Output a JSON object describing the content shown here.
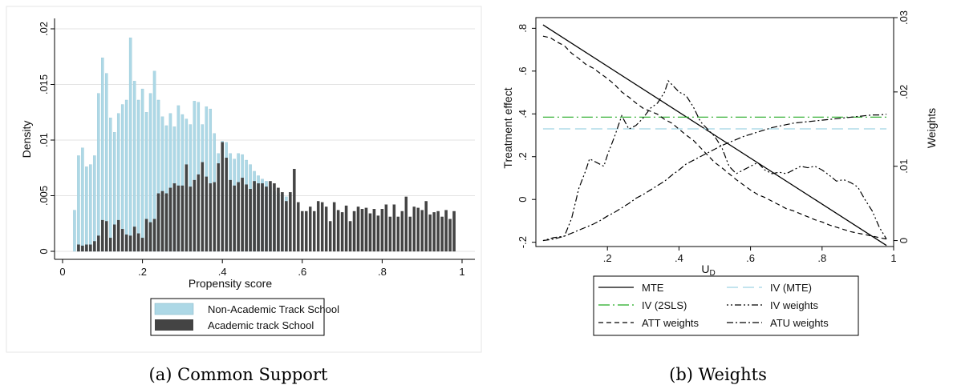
{
  "captions": {
    "left": "(a)  Common Support",
    "right": "(b)  Weights"
  },
  "colors": {
    "light_bar": "#add8e6",
    "dark_bar": "#444444",
    "green": "#22aa22",
    "light_blue_line": "#9fd3e3",
    "black": "#000000"
  },
  "chart_data": [
    {
      "type": "bar",
      "panel": "a",
      "xlabel": "Propensity score",
      "ylabel": "Density",
      "xlim": [
        0,
        1
      ],
      "ylim": [
        0,
        0.02
      ],
      "xticks": [
        0,
        0.2,
        0.4,
        0.6,
        0.8,
        1
      ],
      "xtick_labels": [
        "0",
        ".2",
        ".4",
        ".6",
        ".8",
        "1"
      ],
      "yticks": [
        0,
        0.005,
        0.01,
        0.015,
        0.02
      ],
      "ytick_labels": [
        "0",
        ".005",
        ".01",
        ".015",
        ".02"
      ],
      "grid": true,
      "legend_position": "bottom",
      "series": [
        {
          "name": "Non-Academic Track School",
          "color": "#add8e6",
          "x": [
            0.03,
            0.04,
            0.05,
            0.06,
            0.07,
            0.08,
            0.09,
            0.1,
            0.11,
            0.12,
            0.13,
            0.14,
            0.15,
            0.16,
            0.17,
            0.18,
            0.19,
            0.2,
            0.21,
            0.22,
            0.23,
            0.24,
            0.25,
            0.26,
            0.27,
            0.28,
            0.29,
            0.3,
            0.31,
            0.32,
            0.33,
            0.34,
            0.35,
            0.36,
            0.37,
            0.38,
            0.39,
            0.4,
            0.41,
            0.42,
            0.43,
            0.44,
            0.45,
            0.46,
            0.47,
            0.48,
            0.49,
            0.5,
            0.51,
            0.52,
            0.53,
            0.54,
            0.55,
            0.56
          ],
          "values": [
            0.0037,
            0.0086,
            0.0093,
            0.0076,
            0.0078,
            0.0086,
            0.0142,
            0.0174,
            0.016,
            0.012,
            0.0107,
            0.0124,
            0.0132,
            0.0136,
            0.0192,
            0.0153,
            0.0136,
            0.0146,
            0.0125,
            0.0142,
            0.0162,
            0.0136,
            0.0121,
            0.0113,
            0.0124,
            0.0112,
            0.0131,
            0.0123,
            0.0119,
            0.0114,
            0.0135,
            0.0134,
            0.0114,
            0.013,
            0.0128,
            0.0106,
            0.0088,
            0.0099,
            0.0098,
            0.0088,
            0.0083,
            0.0088,
            0.0087,
            0.0082,
            0.0078,
            0.0072,
            0.0068,
            0.0065,
            0.0063,
            0.0058,
            0.0054,
            0.0052,
            0.0051,
            0.0049
          ]
        },
        {
          "name": "Academic track School",
          "color": "#444444",
          "x": [
            0.04,
            0.05,
            0.06,
            0.07,
            0.08,
            0.09,
            0.1,
            0.11,
            0.12,
            0.13,
            0.14,
            0.15,
            0.16,
            0.17,
            0.18,
            0.19,
            0.2,
            0.21,
            0.22,
            0.23,
            0.24,
            0.25,
            0.26,
            0.27,
            0.28,
            0.29,
            0.3,
            0.31,
            0.32,
            0.33,
            0.34,
            0.35,
            0.36,
            0.37,
            0.38,
            0.39,
            0.4,
            0.41,
            0.42,
            0.43,
            0.44,
            0.45,
            0.46,
            0.47,
            0.48,
            0.49,
            0.5,
            0.51,
            0.52,
            0.53,
            0.54,
            0.55,
            0.56,
            0.57,
            0.58,
            0.59,
            0.6,
            0.61,
            0.62,
            0.63,
            0.64,
            0.65,
            0.66,
            0.67,
            0.68,
            0.69,
            0.7,
            0.71,
            0.72,
            0.73,
            0.74,
            0.75,
            0.76,
            0.77,
            0.78,
            0.79,
            0.8,
            0.81,
            0.82,
            0.83,
            0.84,
            0.85,
            0.86,
            0.87,
            0.88,
            0.89,
            0.9,
            0.91,
            0.92,
            0.93,
            0.94,
            0.95,
            0.96,
            0.97,
            0.98
          ],
          "values": [
            0.0006,
            0.0005,
            0.0006,
            0.0006,
            0.0009,
            0.0014,
            0.0028,
            0.0027,
            0.0012,
            0.0024,
            0.0028,
            0.002,
            0.0015,
            0.0014,
            0.0022,
            0.0016,
            0.0012,
            0.0029,
            0.0026,
            0.0029,
            0.0052,
            0.0054,
            0.0052,
            0.0057,
            0.0061,
            0.0059,
            0.0059,
            0.0078,
            0.0058,
            0.0064,
            0.0069,
            0.008,
            0.0067,
            0.0061,
            0.0062,
            0.0079,
            0.0098,
            0.0084,
            0.0064,
            0.0059,
            0.0062,
            0.0066,
            0.006,
            0.0056,
            0.0063,
            0.0061,
            0.0061,
            0.0058,
            0.0063,
            0.0061,
            0.0057,
            0.0053,
            0.0045,
            0.0053,
            0.0074,
            0.0044,
            0.0036,
            0.0036,
            0.004,
            0.0036,
            0.0045,
            0.0044,
            0.004,
            0.0027,
            0.0044,
            0.0037,
            0.0035,
            0.0041,
            0.0027,
            0.0036,
            0.004,
            0.0038,
            0.0039,
            0.0034,
            0.0038,
            0.0032,
            0.0038,
            0.0042,
            0.0031,
            0.0042,
            0.0031,
            0.0036,
            0.0049,
            0.0031,
            0.004,
            0.0039,
            0.0037,
            0.0045,
            0.0033,
            0.0035,
            0.0036,
            0.0031,
            0.0037,
            0.0029,
            0.0036
          ]
        }
      ]
    },
    {
      "type": "line",
      "panel": "b",
      "xlabel": "U",
      "xlabel_subscript": "D",
      "ylabel": "Treatment effect",
      "y2label": "Weights",
      "xlim": [
        0,
        1
      ],
      "ylim": [
        -0.22,
        0.85
      ],
      "y2lim": [
        -0.0008,
        0.03
      ],
      "xticks": [
        0.2,
        0.4,
        0.6,
        0.8,
        1
      ],
      "xtick_labels": [
        ".2",
        ".4",
        ".6",
        ".8",
        "1"
      ],
      "yticks": [
        -0.2,
        0,
        0.2,
        0.4,
        0.6,
        0.8
      ],
      "ytick_labels": [
        "-.2",
        "0",
        ".2",
        ".4",
        ".6",
        ".8"
      ],
      "y2ticks": [
        0,
        0.01,
        0.02,
        0.03
      ],
      "y2tick_labels": [
        "0",
        ".01",
        ".02",
        ".03"
      ],
      "grid": false,
      "legend_position": "bottom",
      "series": [
        {
          "name": "MTE",
          "axis": "left",
          "color": "#000000",
          "dash": "solid",
          "x": [
            0.02,
            0.98
          ],
          "y": [
            0.816,
            -0.215
          ]
        },
        {
          "name": "IV (MTE)",
          "axis": "left",
          "color": "#9fd3e3",
          "dash": "long",
          "x": [
            0.02,
            0.98
          ],
          "y": [
            0.33,
            0.33
          ]
        },
        {
          "name": "IV (2SLS)",
          "axis": "left",
          "color": "#22aa22",
          "dash": "longdot",
          "x": [
            0.02,
            0.98
          ],
          "y": [
            0.385,
            0.385
          ]
        },
        {
          "name": "IV weights",
          "axis": "right",
          "color": "#000000",
          "dash": "dotdot",
          "x": [
            0.02,
            0.05,
            0.08,
            0.1,
            0.12,
            0.14,
            0.15,
            0.17,
            0.19,
            0.2,
            0.22,
            0.24,
            0.26,
            0.28,
            0.3,
            0.32,
            0.34,
            0.36,
            0.37,
            0.38,
            0.4,
            0.42,
            0.44,
            0.46,
            0.48,
            0.5,
            0.52,
            0.54,
            0.56,
            0.58,
            0.6,
            0.62,
            0.64,
            0.66,
            0.68,
            0.7,
            0.72,
            0.74,
            0.76,
            0.78,
            0.8,
            0.82,
            0.84,
            0.86,
            0.88,
            0.9,
            0.92,
            0.94,
            0.96,
            0.98
          ],
          "y": [
            0.0,
            0.0004,
            0.0006,
            0.003,
            0.007,
            0.0095,
            0.011,
            0.0105,
            0.01,
            0.0115,
            0.014,
            0.0168,
            0.015,
            0.0155,
            0.0165,
            0.0178,
            0.0185,
            0.02,
            0.0215,
            0.021,
            0.02,
            0.0195,
            0.018,
            0.016,
            0.015,
            0.014,
            0.0125,
            0.01,
            0.009,
            0.0095,
            0.01,
            0.0105,
            0.0095,
            0.009,
            0.0092,
            0.009,
            0.0095,
            0.01,
            0.0098,
            0.01,
            0.0095,
            0.0088,
            0.008,
            0.0082,
            0.0078,
            0.0072,
            0.0055,
            0.004,
            0.0018,
            0.0002
          ]
        },
        {
          "name": "ATT weights",
          "axis": "right",
          "color": "#000000",
          "dash": "dash",
          "x": [
            0.02,
            0.04,
            0.06,
            0.08,
            0.1,
            0.12,
            0.14,
            0.16,
            0.18,
            0.2,
            0.22,
            0.24,
            0.26,
            0.28,
            0.3,
            0.32,
            0.34,
            0.36,
            0.38,
            0.4,
            0.42,
            0.44,
            0.46,
            0.48,
            0.5,
            0.52,
            0.54,
            0.56,
            0.58,
            0.6,
            0.62,
            0.64,
            0.66,
            0.68,
            0.7,
            0.72,
            0.74,
            0.76,
            0.78,
            0.8,
            0.82,
            0.84,
            0.86,
            0.88,
            0.9,
            0.92,
            0.94,
            0.96,
            0.98
          ],
          "y": [
            0.0275,
            0.0273,
            0.0267,
            0.0262,
            0.0252,
            0.0245,
            0.0237,
            0.0232,
            0.0225,
            0.0218,
            0.021,
            0.02,
            0.0193,
            0.0185,
            0.0178,
            0.0174,
            0.017,
            0.0163,
            0.0158,
            0.015,
            0.0142,
            0.0135,
            0.0125,
            0.0115,
            0.0105,
            0.0098,
            0.009,
            0.0082,
            0.0075,
            0.0068,
            0.0062,
            0.0058,
            0.0053,
            0.0048,
            0.0043,
            0.004,
            0.0036,
            0.0032,
            0.0028,
            0.0025,
            0.0021,
            0.0018,
            0.0015,
            0.0012,
            0.001,
            0.0008,
            0.0006,
            0.0004,
            0.0002
          ]
        },
        {
          "name": "ATU weights",
          "axis": "right",
          "color": "#000000",
          "dash": "dashdot",
          "x": [
            0.02,
            0.05,
            0.08,
            0.1,
            0.12,
            0.14,
            0.16,
            0.18,
            0.2,
            0.22,
            0.24,
            0.26,
            0.28,
            0.3,
            0.32,
            0.34,
            0.36,
            0.38,
            0.4,
            0.42,
            0.44,
            0.46,
            0.48,
            0.5,
            0.52,
            0.54,
            0.56,
            0.58,
            0.6,
            0.62,
            0.64,
            0.66,
            0.68,
            0.7,
            0.72,
            0.74,
            0.76,
            0.78,
            0.8,
            0.82,
            0.84,
            0.86,
            0.88,
            0.9,
            0.92,
            0.94,
            0.96,
            0.98
          ],
          "y": [
            0.0,
            0.0002,
            0.0006,
            0.001,
            0.0014,
            0.0018,
            0.0022,
            0.0027,
            0.0033,
            0.0038,
            0.0044,
            0.005,
            0.0057,
            0.0062,
            0.0068,
            0.0074,
            0.008,
            0.0088,
            0.0095,
            0.0103,
            0.0108,
            0.0113,
            0.0118,
            0.0123,
            0.0128,
            0.0132,
            0.0136,
            0.014,
            0.0143,
            0.0146,
            0.0149,
            0.0152,
            0.0154,
            0.0156,
            0.0158,
            0.0159,
            0.016,
            0.0161,
            0.0162,
            0.0163,
            0.0164,
            0.0165,
            0.0166,
            0.0167,
            0.0168,
            0.0169,
            0.0169,
            0.017
          ]
        }
      ]
    }
  ]
}
